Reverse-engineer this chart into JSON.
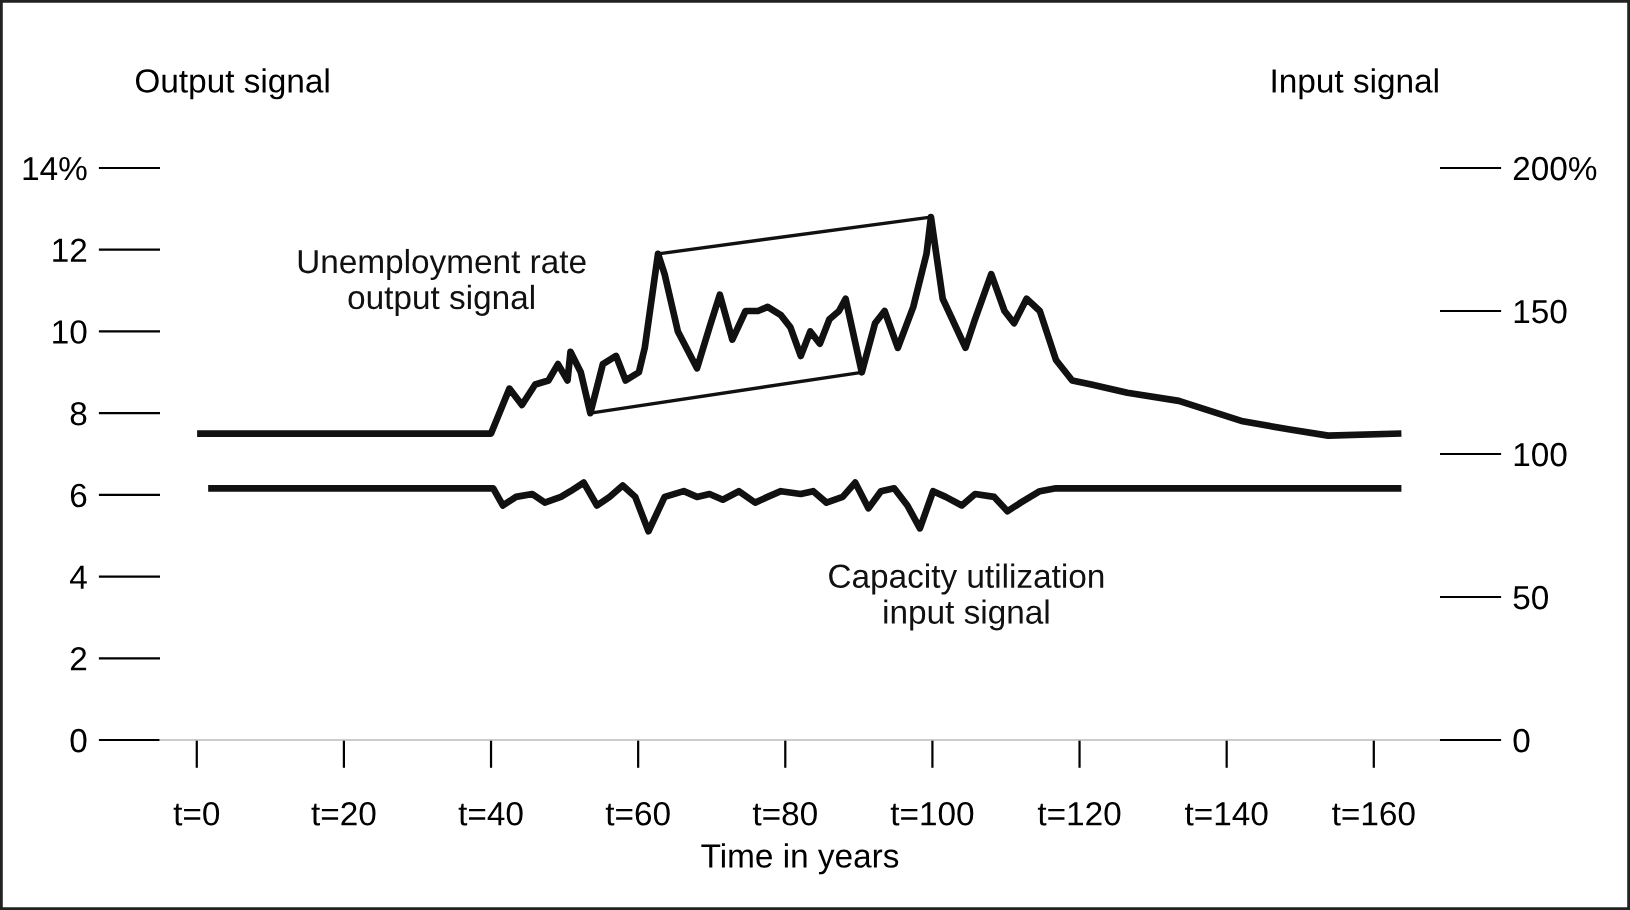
{
  "chart_data": {
    "type": "line",
    "xlabel": "Time in years",
    "ylabel": "Output signal",
    "y2label": "Input signal",
    "xlim": [
      -5,
      169
    ],
    "xticks": [
      {
        "value": 0,
        "label": "t=0"
      },
      {
        "value": 20,
        "label": "t=20"
      },
      {
        "value": 40,
        "label": "t=40"
      },
      {
        "value": 60,
        "label": "t=60"
      },
      {
        "value": 80,
        "label": "t=80"
      },
      {
        "value": 100,
        "label": "t=100"
      },
      {
        "value": 120,
        "label": "t=120"
      },
      {
        "value": 140,
        "label": "t=140"
      },
      {
        "value": 160,
        "label": "t=160"
      }
    ],
    "ylim": [
      0,
      14
    ],
    "yticks": [
      0,
      2,
      4,
      6,
      8,
      10,
      12,
      {
        "value": 14,
        "label": "14%"
      }
    ],
    "y2lim": [
      0,
      200
    ],
    "y2ticks": [
      0,
      50,
      100,
      150,
      {
        "value": 200,
        "label": "200%"
      }
    ],
    "grid": false,
    "legend": false,
    "marker": "none",
    "line_style": "solid",
    "series": [
      {
        "name": "Unemployment rate\noutput signal",
        "color": "#111111",
        "x": [
          0.5,
          40,
          42.5,
          44.2,
          46.0,
          47.8,
          49.1,
          50.4,
          50.8,
          52.2,
          53.5,
          55.2,
          57.0,
          58.3,
          60.1,
          60.9,
          62.7,
          63.6,
          65.4,
          68.0,
          69.7,
          71.1,
          72.8,
          74.6,
          76.3,
          77.6,
          79.4,
          80.7,
          82.1,
          83.4,
          84.7,
          86.0,
          87.3,
          88.2,
          90.4,
          92.2,
          93.5,
          95.3,
          97.4,
          99.2,
          99.8,
          101.4,
          104.5,
          105.8,
          108.0,
          109.8,
          111.1,
          112.8,
          114.6,
          116.8,
          119.0,
          121.6,
          126.5,
          133.5,
          137.0,
          142.2,
          148.6,
          153.8,
          163.3
        ],
        "values": [
          7.5,
          7.5,
          8.6,
          8.2,
          8.7,
          8.8,
          9.2,
          8.8,
          9.5,
          9.0,
          8.0,
          9.2,
          9.4,
          8.8,
          9.0,
          9.6,
          11.9,
          11.4,
          10.0,
          9.1,
          10.1,
          10.9,
          9.8,
          10.5,
          10.5,
          10.6,
          10.4,
          10.1,
          9.4,
          10.0,
          9.7,
          10.3,
          10.5,
          10.8,
          9.0,
          10.2,
          10.5,
          9.6,
          10.6,
          11.9,
          12.8,
          10.8,
          9.6,
          10.3,
          11.4,
          10.5,
          10.2,
          10.8,
          10.5,
          9.3,
          8.8,
          8.7,
          8.5,
          8.3,
          8.1,
          7.8,
          7.6,
          7.45,
          7.5
        ]
      },
      {
        "name": "Capacity utilization\ninput signal",
        "axis": "y2",
        "color": "#111111",
        "x": [
          2,
          40.3,
          41.6,
          43.4,
          45.6,
          47.3,
          49.5,
          50.8,
          52.6,
          54.4,
          56.1,
          57.9,
          59.6,
          61.4,
          63.6,
          66.2,
          68.0,
          69.7,
          71.5,
          73.7,
          75.9,
          77.6,
          79.4,
          82.1,
          83.8,
          85.6,
          87.8,
          89.5,
          91.3,
          93.0,
          94.8,
          96.6,
          98.3,
          100.1,
          101.8,
          104.0,
          105.8,
          108.4,
          110.2,
          112.0,
          114.6,
          116.8,
          163.3
        ],
        "values": [
          88,
          88,
          82,
          85,
          86,
          83,
          85,
          87,
          90,
          82,
          85,
          89,
          85,
          73,
          85,
          87,
          85,
          86,
          84,
          87,
          83,
          85,
          87,
          86,
          87,
          83,
          85,
          90,
          81,
          87,
          88,
          82,
          74,
          87,
          85,
          82,
          86,
          85,
          80,
          83,
          87,
          88,
          88
        ]
      },
      {
        "color": "#111111",
        "x": [
          62.7,
          99.8
        ],
        "values": [
          11.9,
          12.8
        ]
      },
      {
        "color": "#111111",
        "x": [
          53.5,
          90.4
        ],
        "values": [
          8.0,
          9.0
        ]
      }
    ]
  }
}
